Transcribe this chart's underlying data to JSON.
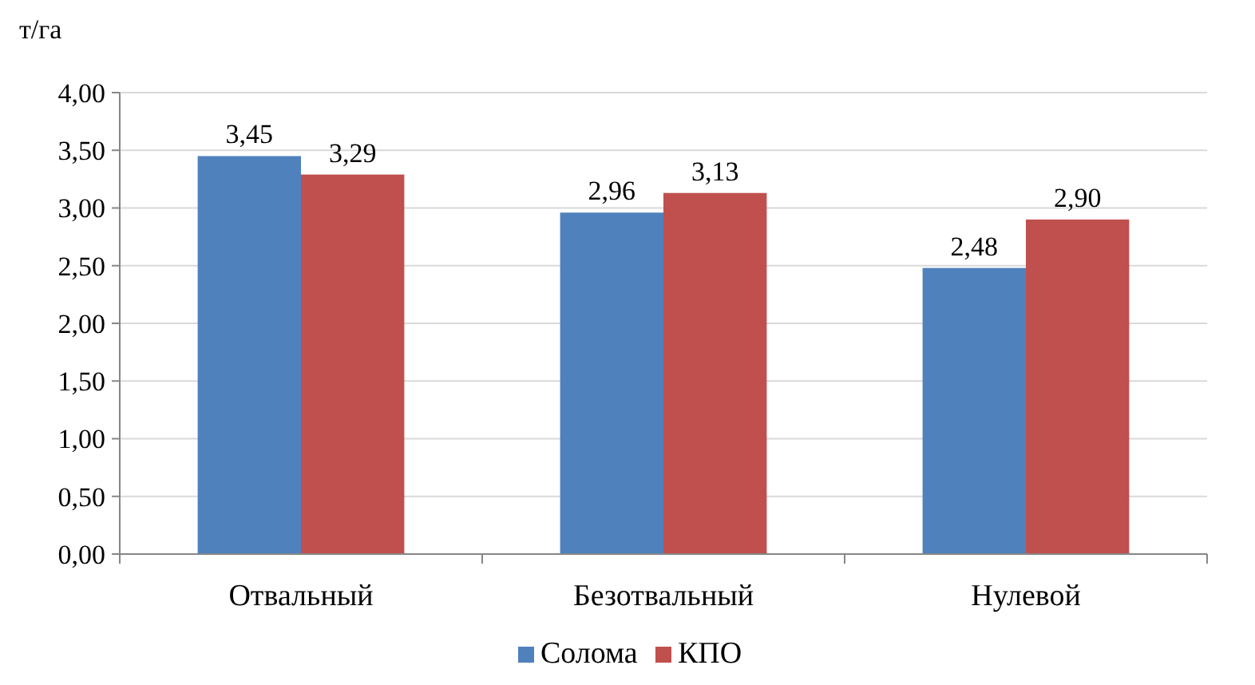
{
  "chart_data": {
    "type": "bar",
    "ylabel": "т/га",
    "categories": [
      "Отвальный",
      "Безотвальный",
      "Нулевой"
    ],
    "series": [
      {
        "name": "Солома",
        "color": "#4f81bd",
        "values": [
          3.45,
          2.96,
          2.48
        ],
        "value_labels": [
          "3,45",
          "2,96",
          "2,48"
        ]
      },
      {
        "name": "КПО",
        "color": "#c0504d",
        "values": [
          3.29,
          3.13,
          2.9
        ],
        "value_labels": [
          "3,29",
          "3,13",
          "2,90"
        ]
      }
    ],
    "ylim": [
      0,
      4
    ],
    "yticks": [
      {
        "value": 0,
        "label": "0,00"
      },
      {
        "value": 0.5,
        "label": "0,50"
      },
      {
        "value": 1,
        "label": "1,00"
      },
      {
        "value": 1.5,
        "label": "1,50"
      },
      {
        "value": 2,
        "label": "2,00"
      },
      {
        "value": 2.5,
        "label": "2,50"
      },
      {
        "value": 3,
        "label": "3,00"
      },
      {
        "value": 3.5,
        "label": "3,50"
      },
      {
        "value": 4,
        "label": "4,00"
      }
    ],
    "grid": "y",
    "legend": "bottom"
  }
}
